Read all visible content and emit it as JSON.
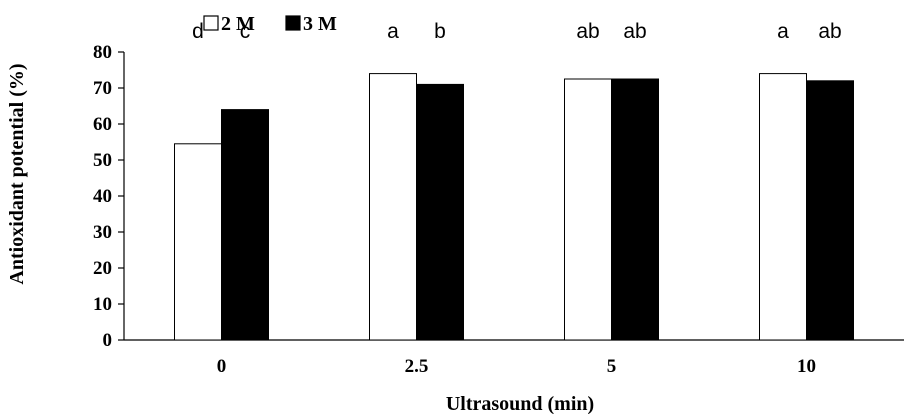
{
  "chart_data": {
    "type": "bar",
    "categories": [
      "0",
      "2.5",
      "5",
      "10"
    ],
    "series": [
      {
        "name": "2 M",
        "color": "#ffffff",
        "values": [
          54.5,
          74,
          72.5,
          74
        ]
      },
      {
        "name": "3 M",
        "color": "#000000",
        "values": [
          64,
          71,
          72.5,
          72
        ]
      }
    ],
    "annotations": [
      [
        "d",
        "c"
      ],
      [
        "a",
        "b"
      ],
      [
        "ab",
        "ab"
      ],
      [
        "a",
        "ab"
      ]
    ],
    "xlabel": "Ultrasound (min)",
    "ylabel": "Antioxidant  potential (%)",
    "ylim": [
      0,
      80
    ],
    "yticks": [
      0,
      10,
      20,
      30,
      40,
      50,
      60,
      70,
      80
    ],
    "grid": false,
    "legend_position": "top-left"
  }
}
